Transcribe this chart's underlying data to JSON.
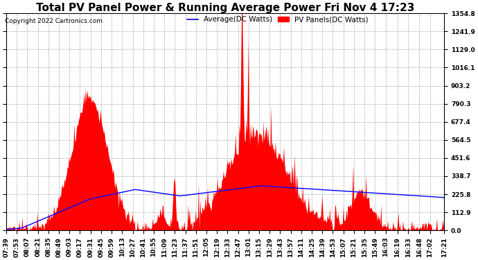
{
  "title": "Total PV Panel Power & Running Average Power Fri Nov 4 17:23",
  "copyright": "Copyright 2022 Cartronics.com",
  "legend_avg": "Average(DC Watts)",
  "legend_pv": "PV Panels(DC Watts)",
  "ymin": 0.0,
  "ymax": 1354.8,
  "yticks": [
    0.0,
    112.9,
    225.8,
    338.7,
    451.6,
    564.5,
    677.4,
    790.3,
    903.2,
    1016.1,
    1129.0,
    1241.9,
    1354.8
  ],
  "color_pv": "#ff0000",
  "color_avg": "#0000ff",
  "color_grid": "#aaaaaa",
  "background": "#ffffff",
  "title_fontsize": 11,
  "tick_fontsize": 6.5,
  "figsize": [
    6.9,
    3.75
  ],
  "dpi": 100
}
